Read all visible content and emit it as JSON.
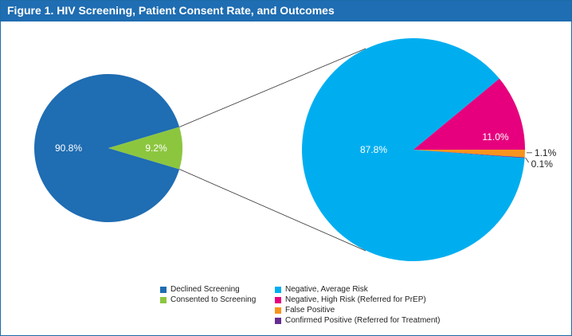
{
  "title": "Figure 1. HIV Screening, Patient Consent Rate, and Outcomes",
  "chart_data": [
    {
      "type": "pie",
      "slices": [
        {
          "label": "Declined Screening",
          "value": 90.8,
          "display": "90.8%",
          "color": "#1f6db2"
        },
        {
          "label": "Consented to Screening",
          "value": 9.2,
          "display": "9.2%",
          "color": "#8cc63f"
        }
      ]
    },
    {
      "type": "pie",
      "slices": [
        {
          "label": "Negative, Average Risk",
          "value": 87.8,
          "display": "87.8%",
          "color": "#00aeef"
        },
        {
          "label": "Negative, High Risk (Referred for PrEP)",
          "value": 11.0,
          "display": "11.0%",
          "color": "#e6007e"
        },
        {
          "label": "False Positive",
          "value": 1.1,
          "display": "1.1%",
          "color": "#f7941d"
        },
        {
          "label": "Confirmed Positive (Referred for Treatment)",
          "value": 0.1,
          "display": "0.1%",
          "color": "#662d91"
        }
      ]
    }
  ]
}
